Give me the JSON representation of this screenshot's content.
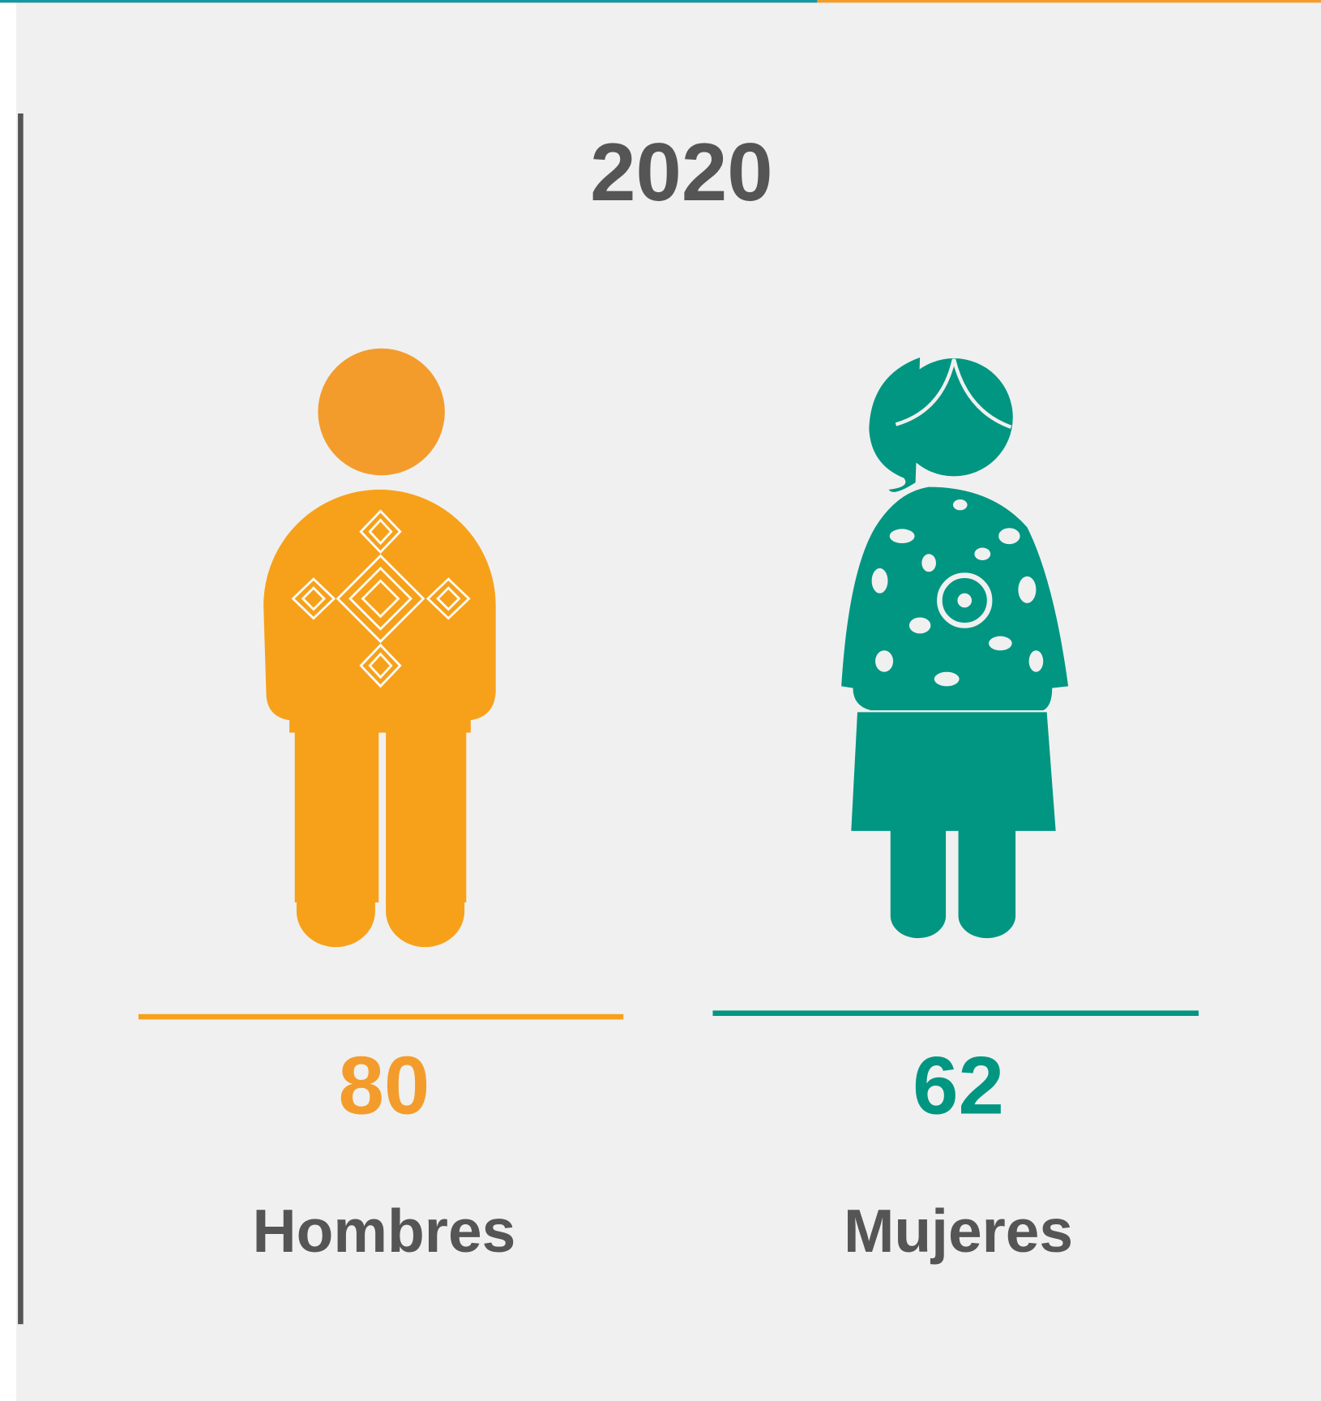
{
  "title": "2020",
  "groups": [
    {
      "value": 80,
      "label": "Hombres"
    },
    {
      "value": 62,
      "label": "Mujeres"
    }
  ]
}
